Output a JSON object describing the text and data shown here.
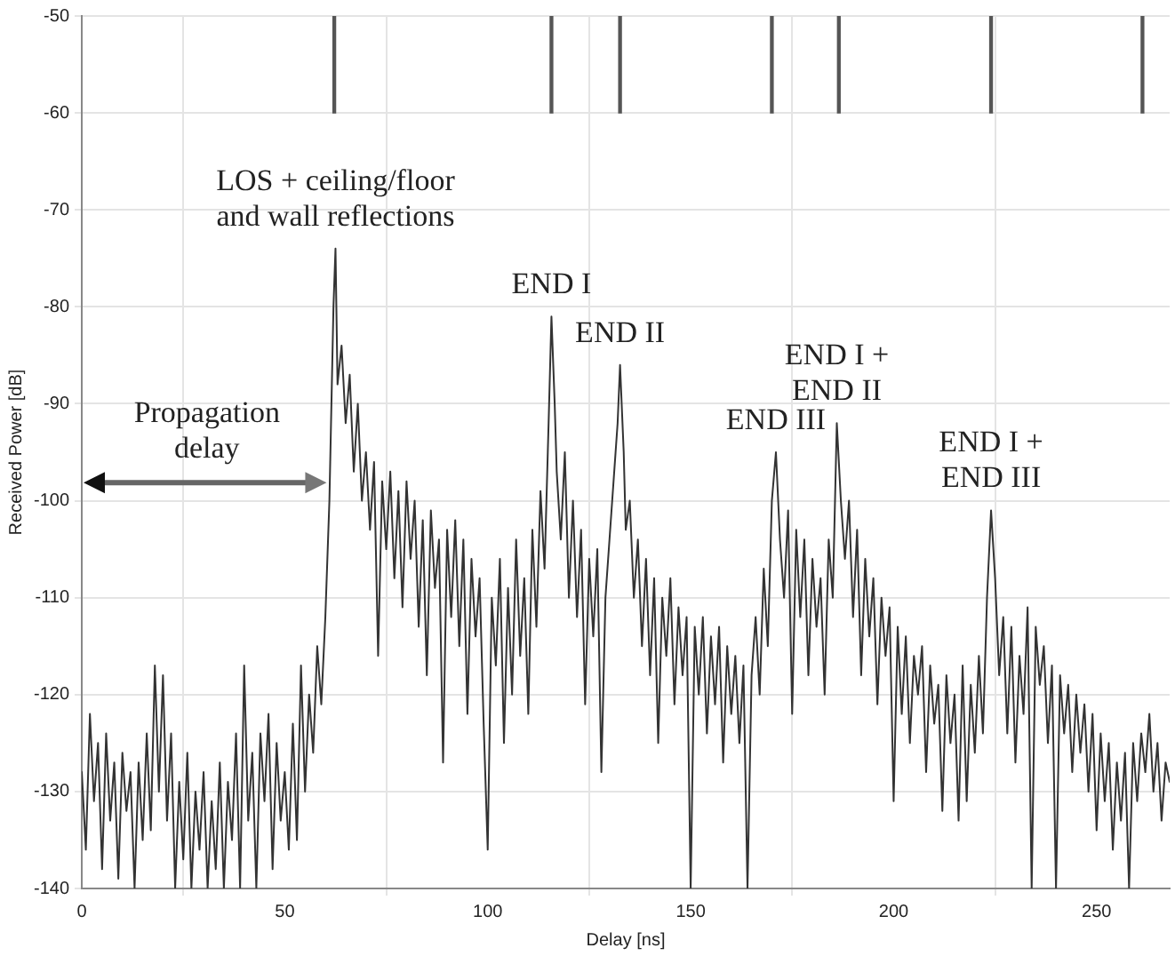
{
  "chart_data": {
    "type": "line",
    "xlabel": "Delay [ns]",
    "ylabel": "Received Power [dB]",
    "xlim": [
      0,
      268
    ],
    "xticks": [
      0,
      50,
      100,
      150,
      200,
      250
    ],
    "ylim": [
      -140,
      -50
    ],
    "yticks": [
      -140,
      -130,
      -120,
      -110,
      -100,
      -90,
      -80,
      -70,
      -60,
      -50
    ],
    "grid": true,
    "marker": "none",
    "line_style": "solid",
    "x": [
      0,
      1,
      2,
      3,
      4,
      5,
      6,
      7,
      8,
      9,
      10,
      11,
      12,
      13,
      14,
      15,
      16,
      17,
      18,
      19,
      20,
      21,
      22,
      23,
      24,
      25,
      26,
      27,
      28,
      29,
      30,
      31,
      32,
      33,
      34,
      35,
      36,
      37,
      38,
      39,
      40,
      41,
      42,
      43,
      44,
      45,
      46,
      47,
      48,
      49,
      50,
      51,
      52,
      53,
      54,
      55,
      56,
      57,
      58,
      59,
      60,
      61,
      62,
      62.5,
      63,
      64,
      65,
      66,
      67,
      68,
      69,
      70,
      71,
      72,
      73,
      74,
      75,
      76,
      77,
      78,
      79,
      80,
      81,
      82,
      83,
      84,
      85,
      86,
      87,
      88,
      89,
      90,
      91,
      92,
      93,
      94,
      95,
      96,
      97,
      98,
      99,
      100,
      101,
      102,
      103,
      104,
      105,
      106,
      107,
      108,
      109,
      110,
      111,
      112,
      113,
      114,
      115,
      115.7,
      116.5,
      117,
      118,
      119,
      120,
      121,
      122,
      123,
      124,
      125,
      126,
      127,
      128,
      129,
      130,
      131,
      132,
      132.6,
      133.5,
      134,
      135,
      136,
      137,
      138,
      139,
      140,
      141,
      142,
      143,
      144,
      145,
      146,
      147,
      148,
      149,
      150,
      151,
      152,
      153,
      154,
      155,
      156,
      157,
      158,
      159,
      160,
      161,
      162,
      163,
      164,
      165,
      166,
      167,
      168,
      169,
      170,
      171,
      172,
      173,
      174,
      175,
      176,
      177,
      178,
      179,
      180,
      181,
      182,
      183,
      184,
      185,
      186,
      187,
      188,
      189,
      190,
      191,
      192,
      193,
      194,
      195,
      196,
      197,
      198,
      199,
      200,
      201,
      202,
      203,
      204,
      205,
      206,
      207,
      208,
      209,
      210,
      211,
      212,
      213,
      214,
      215,
      216,
      217,
      218,
      219,
      220,
      221,
      222,
      223,
      224,
      225,
      226,
      227,
      228,
      229,
      230,
      231,
      232,
      233,
      234,
      235,
      236,
      237,
      238,
      239,
      240,
      241,
      242,
      243,
      244,
      245,
      246,
      247,
      248,
      249,
      250,
      251,
      252,
      253,
      254,
      255,
      256,
      257,
      258,
      259,
      260,
      261,
      262,
      263,
      264,
      265,
      266,
      267,
      268
    ],
    "series": [
      {
        "color": "#333333",
        "values": [
          -128,
          -136,
          -122,
          -131,
          -125,
          -138,
          -124,
          -133,
          -127,
          -139,
          -126,
          -132,
          -128,
          -140,
          -127,
          -135,
          -124,
          -134,
          -117,
          -130,
          -118,
          -133,
          -124,
          -140,
          -129,
          -137,
          -126,
          -140,
          -130,
          -136,
          -128,
          -140,
          -131,
          -138,
          -127,
          -140,
          -129,
          -135,
          -124,
          -140,
          -117,
          -133,
          -126,
          -140,
          -124,
          -131,
          -122,
          -138,
          -125,
          -133,
          -128,
          -136,
          -123,
          -135,
          -117,
          -130,
          -120,
          -126,
          -115,
          -121,
          -112,
          -100,
          -80,
          -74,
          -88,
          -84,
          -92,
          -87,
          -97,
          -90,
          -100,
          -95,
          -103,
          -96,
          -116,
          -98,
          -105,
          -97,
          -108,
          -99,
          -111,
          -98,
          -106,
          -100,
          -113,
          -102,
          -118,
          -101,
          -109,
          -104,
          -127,
          -103,
          -112,
          -102,
          -115,
          -104,
          -122,
          -106,
          -114,
          -108,
          -123,
          -136,
          -110,
          -117,
          -106,
          -125,
          -109,
          -120,
          -104,
          -116,
          -108,
          -122,
          -103,
          -113,
          -99,
          -107,
          -92,
          -81,
          -90,
          -97,
          -104,
          -95,
          -110,
          -100,
          -112,
          -103,
          -121,
          -106,
          -114,
          -105,
          -128,
          -110,
          -104,
          -98,
          -92,
          -86,
          -95,
          -103,
          -100,
          -110,
          -104,
          -115,
          -106,
          -118,
          -108,
          -125,
          -110,
          -116,
          -108,
          -121,
          -111,
          -118,
          -112,
          -140,
          -113,
          -120,
          -112,
          -124,
          -114,
          -121,
          -113,
          -127,
          -115,
          -122,
          -116,
          -125,
          -117,
          -140,
          -118,
          -112,
          -120,
          -107,
          -115,
          -100,
          -95,
          -104,
          -110,
          -101,
          -122,
          -103,
          -112,
          -104,
          -118,
          -106,
          -113,
          -108,
          -120,
          -104,
          -110,
          -92,
          -100,
          -106,
          -100,
          -112,
          -103,
          -118,
          -106,
          -114,
          -108,
          -121,
          -110,
          -116,
          -111,
          -131,
          -113,
          -122,
          -114,
          -125,
          -116,
          -120,
          -115,
          -128,
          -117,
          -123,
          -119,
          -132,
          -118,
          -125,
          -120,
          -133,
          -117,
          -131,
          -119,
          -126,
          -116,
          -124,
          -110,
          -101,
          -108,
          -118,
          -112,
          -124,
          -113,
          -127,
          -116,
          -122,
          -111,
          -140,
          -113,
          -119,
          -115,
          -125,
          -117,
          -140,
          -118,
          -124,
          -119,
          -128,
          -120,
          -126,
          -121,
          -130,
          -122,
          -134,
          -124,
          -131,
          -125,
          -136,
          -127,
          -133,
          -126,
          -140,
          -125,
          -131,
          -124,
          -128,
          -122,
          -130,
          -125,
          -133,
          -127,
          -129
        ]
      },
      {
        "type": "bar",
        "color": "#555555",
        "x": [
          62.2,
          115.7,
          132.6,
          170,
          186.5,
          224,
          261.3
        ],
        "base": [
          -60,
          -60,
          -60,
          -60,
          -60,
          -60,
          -60
        ],
        "values": [
          10,
          10,
          10,
          10,
          10,
          10,
          10
        ]
      }
    ],
    "annotations": [
      "Propagation\ndelay",
      {
        "text": "LOS + ceiling/floor\nand wall reflections",
        "x": 62.5,
        "y": -74
      },
      {
        "text": "END I",
        "x": 115.7,
        "y": -81
      },
      {
        "text": "END II",
        "x": 132.6,
        "y": -86
      },
      {
        "text": "END III",
        "x": 171,
        "y": -95
      },
      {
        "text": "END I +\nEND II",
        "x": 186,
        "y": -92
      },
      {
        "text": "END I +\nEND III",
        "x": 224,
        "y": -101
      }
    ]
  }
}
